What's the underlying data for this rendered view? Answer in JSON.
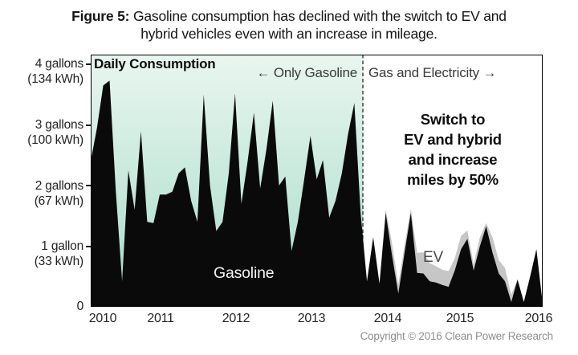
{
  "title": {
    "prefix": "Figure 5:",
    "line1_rest": " Gasoline consumption has declined with the switch to EV and",
    "line2": "hybrid vehicles even with an increase in mileage."
  },
  "annotations": {
    "daily_consumption": "Daily Consumption",
    "only_gasoline": "← Only Gasoline",
    "gas_and_electricity": "Gas and Electricity →",
    "switch_note_lines": [
      "Switch to",
      "EV and hybrid",
      "and increase",
      "miles by 50%"
    ],
    "gasoline_label": "Gasoline",
    "ev_label": "EV"
  },
  "y_axis": {
    "labels": [
      {
        "line1": "4 gallons",
        "line2": "(134 kWh)"
      },
      {
        "line1": "3 gallons",
        "line2": "(100 kWh)"
      },
      {
        "line1": "2 gallons",
        "line2": "(67 kWh)"
      },
      {
        "line1": "1 gallon",
        "line2": "(33 kWh)"
      },
      {
        "line1": "0",
        "line2": ""
      }
    ]
  },
  "x_axis": {
    "labels": [
      "2010",
      "2011",
      "2012",
      "2013",
      "2014",
      "2015",
      "2016"
    ]
  },
  "copyright": "Copyright © 2016 Clean Power Research",
  "colors": {
    "gasoline": "#0a0a0a",
    "ev": "#c6c6c6",
    "era_gradient_top": "#e9f6f0",
    "era_gradient_bottom": "#a6dcc9",
    "divider": "#151515",
    "border": "#000000"
  },
  "chart_data": {
    "type": "area",
    "title": "Daily Consumption",
    "x_start": "2010-01",
    "x_end": "2016-01",
    "x_cadence": "monthly",
    "years": [
      2010,
      2011,
      2012,
      2013,
      2014,
      2015,
      2016
    ],
    "ylabel_units": "gallons (kWh equivalent)",
    "y_ticks": [
      {
        "gallons": 4,
        "kwh": 134
      },
      {
        "gallons": 3,
        "kwh": 100
      },
      {
        "gallons": 2,
        "kwh": 67
      },
      {
        "gallons": 1,
        "kwh": 33
      },
      {
        "gallons": 0,
        "kwh": 0
      }
    ],
    "ylim": [
      0,
      4.16
    ],
    "grid": false,
    "legend": "inline-labels",
    "switch_month_index": 43.35,
    "era_split": {
      "left_label": "Only Gasoline",
      "right_label": "Gas and Electricity",
      "note": "Switch to EV and hybrid and increase miles by 50%"
    },
    "series": [
      {
        "name": "Gasoline",
        "stack_base": true,
        "values": [
          2.4,
          2.95,
          3.65,
          3.73,
          1.9,
          0.42,
          2.25,
          1.6,
          2.9,
          1.4,
          1.38,
          1.85,
          1.85,
          1.9,
          2.2,
          2.3,
          1.75,
          1.4,
          3.5,
          2.0,
          1.25,
          1.4,
          2.2,
          3.52,
          1.7,
          2.4,
          3.2,
          1.95,
          2.6,
          3.4,
          2.0,
          2.15,
          0.92,
          1.4,
          2.1,
          2.82,
          2.1,
          2.42,
          1.47,
          1.75,
          2.2,
          2.85,
          3.36,
          1.55,
          0.42,
          1.15,
          0.38,
          1.55,
          0.85,
          0.22,
          0.9,
          1.55,
          0.56,
          0.55,
          0.42,
          0.4,
          0.36,
          0.33,
          0.6,
          0.95,
          1.12,
          0.6,
          1.0,
          1.33,
          0.9,
          0.55,
          0.42,
          0.08,
          0.45,
          0.08,
          0.5,
          0.95,
          0.05
        ]
      },
      {
        "name": "EV",
        "stacked_on": "Gasoline",
        "values": [
          0,
          0,
          0,
          0,
          0,
          0,
          0,
          0,
          0,
          0,
          0,
          0,
          0,
          0,
          0,
          0,
          0,
          0,
          0,
          0,
          0,
          0,
          0,
          0,
          0,
          0,
          0,
          0,
          0,
          0,
          0,
          0,
          0,
          0,
          0,
          0,
          0,
          0,
          0,
          0,
          0,
          0,
          0,
          0,
          0,
          0,
          0,
          0.06,
          0.2,
          0.15,
          0.12,
          0.07,
          0.33,
          0.35,
          0.3,
          0.27,
          0.25,
          0.26,
          0.2,
          0.22,
          0.14,
          0.1,
          0.15,
          0.05,
          0.25,
          0.22,
          0.22,
          0.12,
          0,
          0,
          0,
          0,
          0
        ]
      }
    ]
  }
}
